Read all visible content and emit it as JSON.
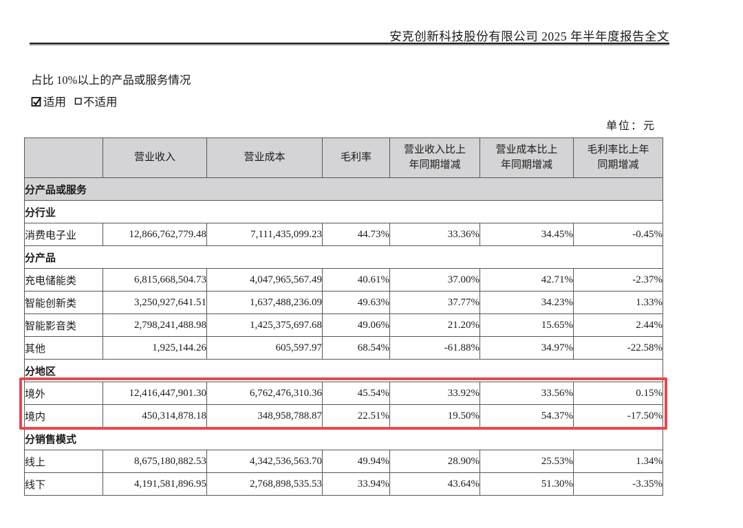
{
  "page": {
    "header_title": "安克创新科技股份有限公司 2025 年半年度报告全文",
    "section_title": "占比 10%以上的产品或服务情况",
    "applicable_label": "适用",
    "not_applicable_label": "不适用",
    "unit_label": "单位：元"
  },
  "table": {
    "columns": [
      {
        "line1": "",
        "line2": ""
      },
      {
        "line1": "营业收入",
        "line2": ""
      },
      {
        "line1": "营业成本",
        "line2": ""
      },
      {
        "line1": "毛利率",
        "line2": ""
      },
      {
        "line1": "营业收入比上",
        "line2": "年同期增减"
      },
      {
        "line1": "营业成本比上",
        "line2": "年同期增减"
      },
      {
        "line1": "毛利率比上年",
        "line2": "同期增减"
      }
    ],
    "rows": [
      {
        "type": "section-gray",
        "label": "分产品或服务"
      },
      {
        "type": "section",
        "label": "分行业"
      },
      {
        "type": "data",
        "label": "消费电子业",
        "values": [
          "12,866,762,779.48",
          "7,111,435,099.23",
          "44.73%",
          "33.36%",
          "34.45%",
          "-0.45%"
        ]
      },
      {
        "type": "section",
        "label": "分产品"
      },
      {
        "type": "data",
        "label": "充电储能类",
        "values": [
          "6,815,668,504.73",
          "4,047,965,567.49",
          "40.61%",
          "37.00%",
          "42.71%",
          "-2.37%"
        ]
      },
      {
        "type": "data",
        "label": "智能创新类",
        "values": [
          "3,250,927,641.51",
          "1,637,488,236.09",
          "49.63%",
          "37.77%",
          "34.23%",
          "1.33%"
        ]
      },
      {
        "type": "data",
        "label": "智能影音类",
        "values": [
          "2,798,241,488.98",
          "1,425,375,697.68",
          "49.06%",
          "21.20%",
          "15.65%",
          "2.44%"
        ]
      },
      {
        "type": "data",
        "label": "其他",
        "values": [
          "1,925,144.26",
          "605,597.97",
          "68.54%",
          "-61.88%",
          "34.97%",
          "-22.58%"
        ]
      },
      {
        "type": "section",
        "label": "分地区"
      },
      {
        "type": "data",
        "label": "境外",
        "values": [
          "12,416,447,901.30",
          "6,762,476,310.36",
          "45.54%",
          "33.92%",
          "33.56%",
          "0.15%"
        ]
      },
      {
        "type": "data",
        "label": "境内",
        "values": [
          "450,314,878.18",
          "348,958,788.87",
          "22.51%",
          "19.50%",
          "54.37%",
          "-17.50%"
        ]
      },
      {
        "type": "section",
        "label": "分销售模式"
      },
      {
        "type": "data",
        "label": "线上",
        "values": [
          "8,675,180,882.53",
          "4,342,536,563.70",
          "49.94%",
          "28.90%",
          "25.53%",
          "1.34%"
        ]
      },
      {
        "type": "data",
        "label": "线下",
        "values": [
          "4,191,581,896.95",
          "2,768,898,535.53",
          "33.94%",
          "43.64%",
          "51.30%",
          "-3.35%"
        ]
      }
    ]
  },
  "highlight": {
    "color": "#e8474f",
    "highlighted_rows": [
      "境外",
      "境内"
    ]
  },
  "colors": {
    "header_gray": "#d4d4d6",
    "border": "#555555",
    "text": "#1a1a1a"
  }
}
